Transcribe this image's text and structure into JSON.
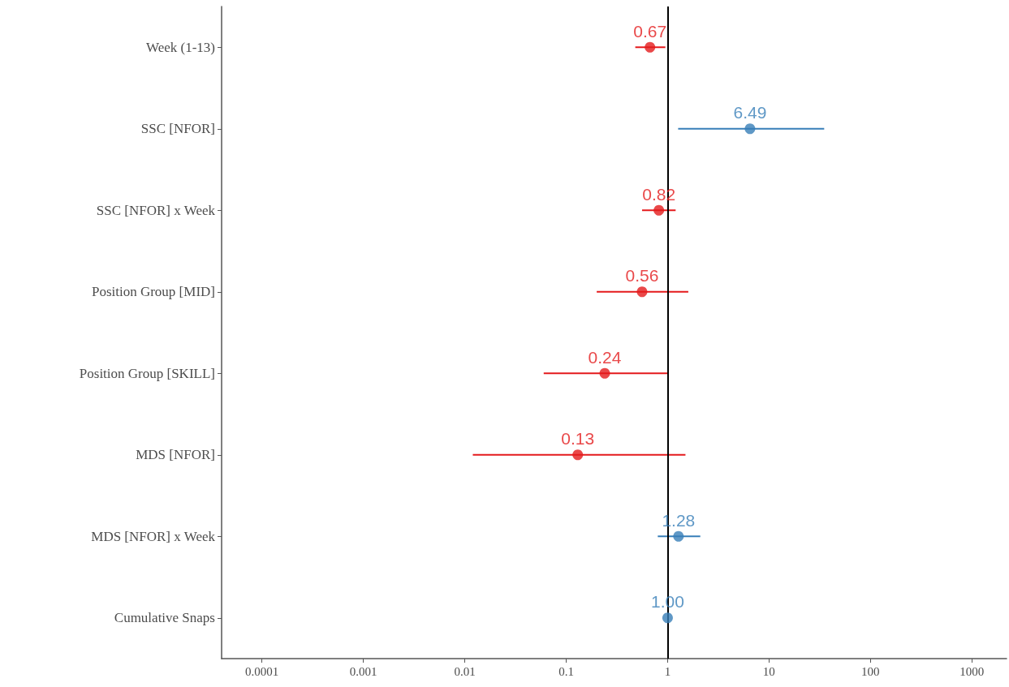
{
  "chart_data": {
    "type": "scatter",
    "orientation": "horizontal",
    "log": "x",
    "categories": [
      "Week (1-13)",
      "SSC [NFOR]",
      "SSC [NFOR] x Week",
      "Position Group [MID]",
      "Position Group [SKILL]",
      "MDS [NFOR]",
      "MDS [NFOR] x Week",
      "Cumulative Snaps"
    ],
    "values": [
      0.67,
      6.49,
      0.82,
      0.56,
      0.24,
      0.13,
      1.28,
      1.0
    ],
    "errors": [
      [
        0.48,
        0.95
      ],
      [
        1.27,
        35
      ],
      [
        0.56,
        1.2
      ],
      [
        0.2,
        1.6
      ],
      [
        0.06,
        1.0
      ],
      [
        0.012,
        1.5
      ],
      [
        0.8,
        2.1
      ],
      null
    ],
    "value_labels": [
      "0.67",
      "6.49",
      "0.82",
      "0.56",
      "0.24",
      "0.13",
      "1.28",
      "1.00"
    ],
    "colors": [
      "#e41a1c",
      "#377eb8",
      "#e41a1c",
      "#e41a1c",
      "#e41a1c",
      "#e41a1c",
      "#377eb8",
      "#377eb8"
    ],
    "xlim": [
      4e-05,
      2200
    ],
    "xticks": [
      0.0001,
      0.001,
      0.01,
      0.1,
      1,
      10,
      100,
      1000
    ],
    "ref_lines": [
      {
        "axis": "x",
        "value": 1,
        "color": "#000000",
        "line_style": "solid"
      }
    ],
    "marker": "circle",
    "grid": false
  }
}
